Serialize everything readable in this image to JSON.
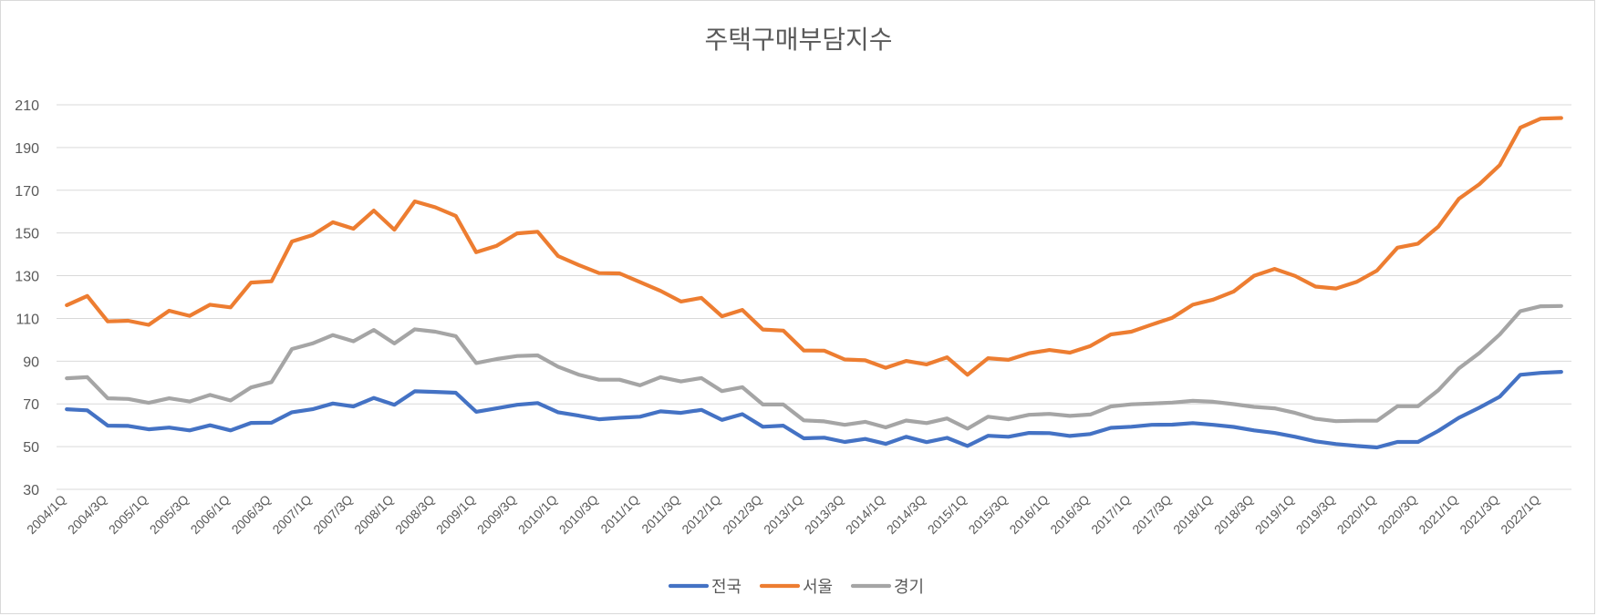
{
  "chart_data": {
    "type": "line",
    "title": "주택구매부담지수",
    "xlabel": "",
    "ylabel": "",
    "ylim": [
      30,
      210
    ],
    "y_ticks": [
      30,
      50,
      70,
      90,
      110,
      130,
      150,
      170,
      190,
      210
    ],
    "grid": true,
    "legend_position": "bottom",
    "x": [
      "2004/1Q",
      "2004/2Q",
      "2004/3Q",
      "2004/4Q",
      "2005/1Q",
      "2005/2Q",
      "2005/3Q",
      "2005/4Q",
      "2006/1Q",
      "2006/2Q",
      "2006/3Q",
      "2006/4Q",
      "2007/1Q",
      "2007/2Q",
      "2007/3Q",
      "2007/4Q",
      "2008/1Q",
      "2008/2Q",
      "2008/3Q",
      "2008/4Q",
      "2009/1Q",
      "2009/2Q",
      "2009/3Q",
      "2009/4Q",
      "2010/1Q",
      "2010/2Q",
      "2010/3Q",
      "2010/4Q",
      "2011/1Q",
      "2011/2Q",
      "2011/3Q",
      "2011/4Q",
      "2012/1Q",
      "2012/2Q",
      "2012/3Q",
      "2012/4Q",
      "2013/1Q",
      "2013/2Q",
      "2013/3Q",
      "2013/4Q",
      "2014/1Q",
      "2014/2Q",
      "2014/3Q",
      "2014/4Q",
      "2015/1Q",
      "2015/2Q",
      "2015/3Q",
      "2015/4Q",
      "2016/1Q",
      "2016/2Q",
      "2016/3Q",
      "2016/4Q",
      "2017/1Q",
      "2017/2Q",
      "2017/3Q",
      "2017/4Q",
      "2018/1Q",
      "2018/2Q",
      "2018/3Q",
      "2018/4Q",
      "2019/1Q",
      "2019/2Q",
      "2019/3Q",
      "2019/4Q",
      "2020/1Q",
      "2020/2Q",
      "2020/3Q",
      "2020/4Q",
      "2021/1Q",
      "2021/2Q",
      "2021/3Q",
      "2021/4Q",
      "2022/1Q",
      "2022/2Q"
    ],
    "x_tick_labels": [
      "2004/1Q",
      "2004/3Q",
      "2005/1Q",
      "2005/3Q",
      "2006/1Q",
      "2006/3Q",
      "2007/1Q",
      "2007/3Q",
      "2008/1Q",
      "2008/3Q",
      "2009/1Q",
      "2009/3Q",
      "2010/1Q",
      "2010/3Q",
      "2011/1Q",
      "2011/3Q",
      "2012/1Q",
      "2012/3Q",
      "2013/1Q",
      "2013/3Q",
      "2014/1Q",
      "2014/3Q",
      "2015/1Q",
      "2015/3Q",
      "2016/1Q",
      "2016/3Q",
      "2017/1Q",
      "2017/3Q",
      "2018/1Q",
      "2018/3Q",
      "2019/1Q",
      "2019/3Q",
      "2020/1Q",
      "2020/3Q",
      "2021/1Q",
      "2021/3Q",
      "2022/1Q"
    ],
    "series": [
      {
        "name": "전국",
        "color": "#4472c4",
        "values": [
          67.5,
          67.0,
          59.8,
          59.7,
          58.1,
          58.9,
          57.6,
          60.0,
          57.6,
          61.1,
          61.2,
          66.1,
          67.5,
          70.2,
          68.8,
          72.8,
          69.6,
          75.9,
          75.6,
          75.2,
          66.3,
          67.9,
          69.6,
          70.4,
          66.1,
          64.5,
          62.8,
          63.5,
          64.0,
          66.5,
          65.8,
          67.2,
          62.5,
          65.2,
          59.3,
          59.8,
          53.9,
          54.2,
          52.2,
          53.6,
          51.3,
          54.6,
          52.1,
          54.1,
          50.3,
          55.1,
          54.6,
          56.4,
          56.3,
          55.0,
          55.9,
          58.8,
          59.3,
          60.2,
          60.3,
          61.0,
          60.2,
          59.2,
          57.6,
          56.4,
          54.6,
          52.5,
          51.2,
          50.3,
          49.6,
          52.2,
          52.2,
          57.4,
          63.5,
          68.2,
          73.4,
          83.6,
          84.5,
          85.0
        ]
      },
      {
        "name": "서울",
        "color": "#ed7d31",
        "values": [
          116.2,
          120.5,
          108.6,
          108.9,
          107.0,
          113.6,
          111.2,
          116.4,
          115.2,
          126.8,
          127.4,
          146.0,
          149.0,
          155.0,
          152.0,
          160.5,
          151.5,
          164.8,
          162.0,
          158.0,
          141.0,
          144.0,
          149.8,
          150.6,
          139.2,
          135.0,
          131.2,
          131.1,
          127.0,
          122.9,
          117.9,
          119.6,
          111.0,
          114.0,
          104.8,
          104.3,
          95.0,
          94.9,
          90.8,
          90.4,
          86.9,
          90.1,
          88.5,
          91.8,
          83.6,
          91.4,
          90.6,
          93.7,
          95.2,
          94.0,
          97.1,
          102.5,
          103.8,
          107.1,
          110.3,
          116.4,
          118.8,
          122.6,
          130.0,
          133.2,
          129.9,
          124.9,
          124.0,
          127.1,
          132.4,
          143.1,
          145.0,
          153.0,
          166.0,
          172.8,
          181.8,
          199.3,
          203.5,
          203.8
        ]
      },
      {
        "name": "경기",
        "color": "#a5a5a5",
        "values": [
          82.0,
          82.5,
          72.6,
          72.3,
          70.5,
          72.6,
          71.1,
          74.2,
          71.6,
          77.7,
          80.2,
          95.7,
          98.3,
          102.2,
          99.3,
          104.6,
          98.3,
          104.9,
          103.8,
          101.7,
          89.1,
          91.0,
          92.4,
          92.7,
          87.4,
          83.7,
          81.3,
          81.3,
          78.7,
          82.5,
          80.5,
          82.1,
          76.0,
          77.8,
          69.7,
          69.7,
          62.3,
          61.8,
          60.2,
          61.6,
          59.0,
          62.2,
          61.0,
          63.2,
          58.4,
          64.0,
          62.8,
          64.9,
          65.3,
          64.4,
          65.0,
          68.8,
          69.8,
          70.2,
          70.6,
          71.4,
          71.0,
          69.9,
          68.6,
          67.9,
          65.8,
          63.0,
          61.9,
          62.1,
          62.1,
          68.9,
          68.9,
          76.4,
          86.6,
          93.8,
          102.5,
          113.4,
          115.7,
          115.8
        ]
      }
    ]
  }
}
